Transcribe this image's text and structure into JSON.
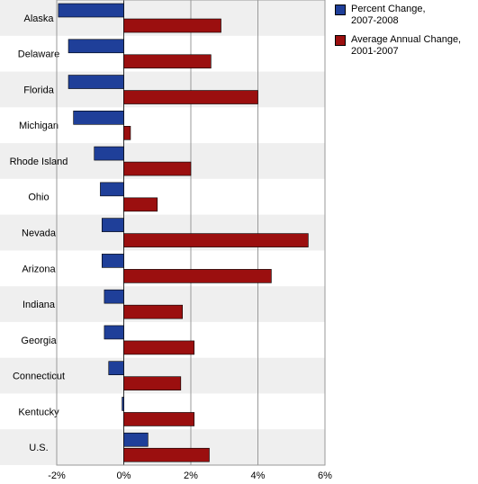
{
  "chart_data": {
    "type": "bar",
    "orientation": "horizontal",
    "categories": [
      "Alaska",
      "Delaware",
      "Florida",
      "Michigan",
      "Rhode Island",
      "Ohio",
      "Nevada",
      "Arizona",
      "Indiana",
      "Georgia",
      "Connecticut",
      "Kentucky",
      "U.S."
    ],
    "series": [
      {
        "name": "Percent Change, 2007-2008",
        "name_lines": [
          "Percent Change,",
          "2007-2008"
        ],
        "color": "#1f3f99",
        "values": [
          -1.95,
          -1.65,
          -1.65,
          -1.5,
          -0.88,
          -0.7,
          -0.65,
          -0.65,
          -0.58,
          -0.58,
          -0.45,
          -0.05,
          0.72
        ]
      },
      {
        "name": "Average Annual Change, 2001-2007",
        "name_lines": [
          "Average Annual Change,",
          "2001-2007"
        ],
        "color": "#9b0f0f",
        "values": [
          2.9,
          2.6,
          4.0,
          0.2,
          2.0,
          1.0,
          5.5,
          4.4,
          1.75,
          2.1,
          1.7,
          2.1,
          2.55
        ]
      }
    ],
    "xlim": [
      -2,
      6
    ],
    "xticks": [
      "-2%",
      "0%",
      "2%",
      "4%",
      "6%"
    ],
    "xtick_values": [
      -2,
      0,
      2,
      4,
      6
    ],
    "grid": true,
    "legend_position": "top-right",
    "title": "",
    "xlabel": "",
    "ylabel": ""
  }
}
